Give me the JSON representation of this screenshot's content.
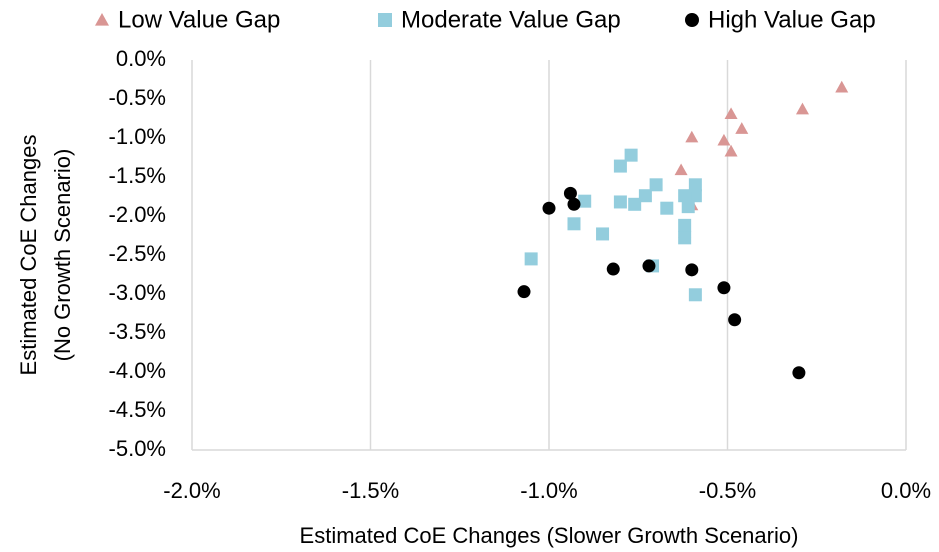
{
  "chart_data": {
    "type": "scatter",
    "xlabel": "Estimated CoE Changes (Slower Growth Scenario)",
    "ylabel": [
      "Estimated CoE Changes",
      "(No Growth Scenario)"
    ],
    "xlim": [
      -2.0,
      0.0
    ],
    "ylim": [
      -5.0,
      0.0
    ],
    "xticks": [
      {
        "value": -2.0,
        "label": "-2.0%"
      },
      {
        "value": -1.5,
        "label": "-1.5%"
      },
      {
        "value": -1.0,
        "label": "-1.0%"
      },
      {
        "value": -0.5,
        "label": "-0.5%"
      },
      {
        "value": 0.0,
        "label": "0.0%"
      }
    ],
    "yticks": [
      {
        "value": 0.0,
        "label": "0.0%"
      },
      {
        "value": -0.5,
        "label": "-0.5%"
      },
      {
        "value": -1.0,
        "label": "-1.0%"
      },
      {
        "value": -1.5,
        "label": "-1.5%"
      },
      {
        "value": -2.0,
        "label": "-2.0%"
      },
      {
        "value": -2.5,
        "label": "-2.5%"
      },
      {
        "value": -3.0,
        "label": "-3.0%"
      },
      {
        "value": -3.5,
        "label": "-3.5%"
      },
      {
        "value": -4.0,
        "label": "-4.0%"
      },
      {
        "value": -4.5,
        "label": "-4.5%"
      },
      {
        "value": -5.0,
        "label": "-5.0%"
      }
    ],
    "grid": "x",
    "legend": "top",
    "series": [
      {
        "name": "Low Value Gap",
        "color": "#d99694",
        "marker": "triangle",
        "x": [
          -0.18,
          -0.29,
          -0.46,
          -0.49,
          -0.51,
          -0.49,
          -0.6,
          -0.63,
          -0.6,
          -0.62
        ],
        "values": [
          -0.35,
          -0.63,
          -0.88,
          -0.69,
          -1.03,
          -1.17,
          -0.99,
          -1.41,
          -1.86,
          -2.21
        ]
      },
      {
        "name": "Moderate Value Gap",
        "color": "#93cddd",
        "marker": "square",
        "x": [
          -0.77,
          -0.8,
          -0.7,
          -0.73,
          -0.67,
          -0.76,
          -0.8,
          -0.9,
          -0.93,
          -0.85,
          -1.05,
          -0.59,
          -0.62,
          -0.61,
          -0.62,
          -0.62,
          -0.71,
          -0.59,
          -0.59
        ],
        "values": [
          -1.22,
          -1.36,
          -1.6,
          -1.74,
          -1.9,
          -1.85,
          -1.82,
          -1.81,
          -2.1,
          -2.23,
          -2.55,
          -1.74,
          -1.74,
          -1.88,
          -2.12,
          -2.28,
          -2.64,
          -1.6,
          -3.01
        ]
      },
      {
        "name": "High Value Gap",
        "color": "#000000",
        "marker": "circle",
        "x": [
          -0.94,
          -0.93,
          -1.0,
          -1.07,
          -0.82,
          -0.72,
          -0.6,
          -0.51,
          -0.48,
          -0.3
        ],
        "values": [
          -1.71,
          -1.85,
          -1.9,
          -2.97,
          -2.68,
          -2.64,
          -2.69,
          -2.92,
          -3.33,
          -4.01
        ]
      }
    ]
  }
}
